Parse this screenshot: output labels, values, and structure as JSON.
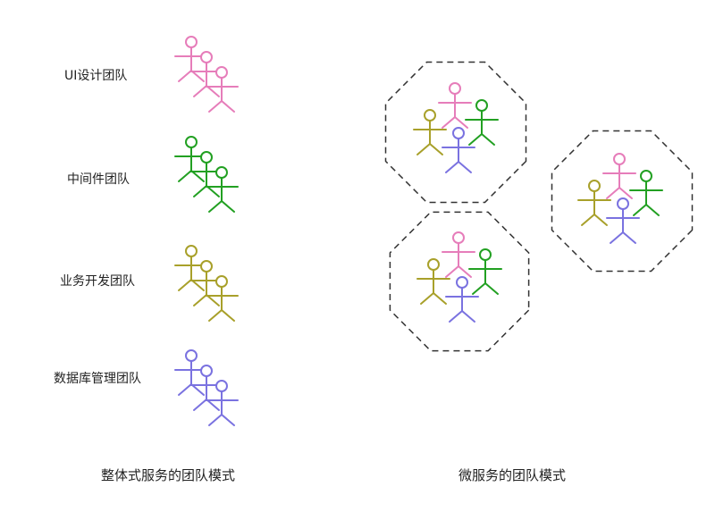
{
  "colors": {
    "ui": "#e67dba",
    "middleware": "#22a022",
    "business": "#a8a02a",
    "database": "#7a72e0",
    "octagon_stroke": "#333333"
  },
  "monolith": {
    "caption": "整体式服务的团队模式",
    "teams": [
      {
        "label": "UI设计团队",
        "color_key": "ui"
      },
      {
        "label": "中间件团队",
        "color_key": "middleware"
      },
      {
        "label": "业务开发团队",
        "color_key": "business"
      },
      {
        "label": "数据库管理团队",
        "color_key": "database"
      }
    ]
  },
  "microservices": {
    "caption": "微服务的团队模式",
    "team_count": 3,
    "member_roles": [
      "ui",
      "middleware",
      "business",
      "database"
    ]
  }
}
